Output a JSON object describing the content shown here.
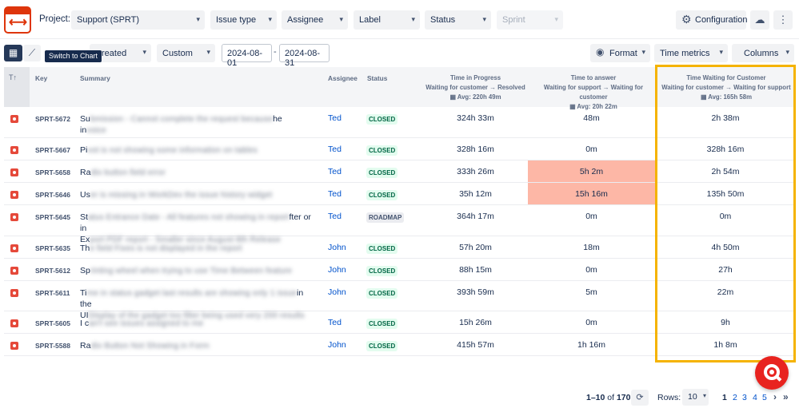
{
  "toolbar": {
    "project_label": "Project:",
    "project_value": "Support (SPRT)",
    "issue_type": "Issue type",
    "assignee": "Assignee",
    "label": "Label",
    "status": "Status",
    "sprint": "Sprint",
    "configuration": "Configuration"
  },
  "toolbar2": {
    "tooltip": "Switch to Chart",
    "date_field": "reated",
    "date_mode": "Custom",
    "date_from": "2024-08-01",
    "date_sep": "-",
    "date_to": "2024-08-31",
    "format": "Format",
    "time_metrics": "Time metrics",
    "columns": "Columns"
  },
  "table": {
    "sort_icon": "T↑",
    "headers": {
      "key": "Key",
      "summary": "Summary",
      "assignee": "Assignee",
      "status": "Status"
    },
    "metrics": [
      {
        "title": "Time in Progress",
        "sub": "Waiting for customer → Resolved",
        "avg": "Avg: 220h 49m"
      },
      {
        "title": "Time to answer",
        "sub": "Waiting for support → Waiting for customer",
        "avg": "Avg: 20h 22m"
      },
      {
        "title": "Time Waiting for Customer",
        "sub": "Waiting for customer → Waiting for support",
        "avg": "Avg: 165h 58m"
      }
    ],
    "rows": [
      {
        "key": "SPRT-5672",
        "summary_prefix": "Su",
        "summary_blur": "bmission - Cannot complete the request because",
        "summary_suffix": "he",
        "summary_line2_prefix": "in",
        "summary_line2_blur": "voice",
        "assignee": "Ted",
        "status": "CLOSED",
        "m1": "324h 33m",
        "m2": "48m",
        "m3": "2h 38m"
      },
      {
        "key": "SPRT-5667",
        "summary_prefix": "Pi",
        "summary_blur": "vot is not showing some information on tables",
        "summary_suffix": "",
        "summary_line2_prefix": "",
        "summary_line2_blur": "",
        "assignee": "Ted",
        "status": "CLOSED",
        "m1": "328h 16m",
        "m2": "0m",
        "m3": "328h 16m"
      },
      {
        "key": "SPRT-5658",
        "summary_prefix": "Ra",
        "summary_blur": "dio button field error",
        "summary_suffix": "",
        "summary_line2_prefix": "",
        "summary_line2_blur": "",
        "assignee": "Ted",
        "status": "CLOSED",
        "m1": "333h 26m",
        "m2": "5h 2m",
        "m3": "2h 54m"
      },
      {
        "key": "SPRT-5646",
        "summary_prefix": "Us",
        "summary_blur": "er is missing in WorkDev the issue history widget",
        "summary_suffix": "",
        "summary_line2_prefix": "",
        "summary_line2_blur": "",
        "assignee": "Ted",
        "status": "CLOSED",
        "m1": "35h 12m",
        "m2": "15h 16m",
        "m3": "135h 50m"
      },
      {
        "key": "SPRT-5645",
        "summary_prefix": "St",
        "summary_blur": "atus Entrance Date - All features not showing in report",
        "summary_suffix": "fter or in",
        "summary_line2_prefix": "Ex",
        "summary_line2_blur": "port PDF report - Smaller since August 8th Release",
        "assignee": "Ted",
        "status": "ROADMAP",
        "m1": "364h 17m",
        "m2": "0m",
        "m3": "0m"
      },
      {
        "key": "SPRT-5635",
        "summary_prefix": "Th",
        "summary_blur": "e field Fixes is not displayed in the report",
        "summary_suffix": "",
        "summary_line2_prefix": "",
        "summary_line2_blur": "",
        "assignee": "John",
        "status": "CLOSED",
        "m1": "57h 20m",
        "m2": "18m",
        "m3": "4h 50m"
      },
      {
        "key": "SPRT-5612",
        "summary_prefix": "Sp",
        "summary_blur": "rinting wheel when trying to use Time Between feature",
        "summary_suffix": "",
        "summary_line2_prefix": "",
        "summary_line2_blur": "",
        "assignee": "John",
        "status": "CLOSED",
        "m1": "88h 15m",
        "m2": "0m",
        "m3": "27h"
      },
      {
        "key": "SPRT-5611",
        "summary_prefix": "Ti",
        "summary_blur": "me in status gadget last results are showing only 1 issue",
        "summary_suffix": "in the",
        "summary_line2_prefix": "UI",
        "summary_line2_blur": "Display of the gadget too filter being used very 200 results",
        "assignee": "John",
        "status": "CLOSED",
        "m1": "393h 59m",
        "m2": "5m",
        "m3": "22m"
      },
      {
        "key": "SPRT-5605",
        "summary_prefix": "I c",
        "summary_blur": "an't see issues assigned to me",
        "summary_suffix": "",
        "summary_line2_prefix": "",
        "summary_line2_blur": "",
        "assignee": "Ted",
        "status": "CLOSED",
        "m1": "15h 26m",
        "m2": "0m",
        "m3": "9h"
      },
      {
        "key": "SPRT-5588",
        "summary_prefix": "Ra",
        "summary_blur": "dio Button Not Showing in Form",
        "summary_suffix": "",
        "summary_line2_prefix": "",
        "summary_line2_blur": "",
        "assignee": "John",
        "status": "CLOSED",
        "m1": "415h 57m",
        "m2": "1h 16m",
        "m3": "1h 8m"
      }
    ]
  },
  "footer": {
    "range": "1–10",
    "of_label": "of",
    "total": "170",
    "rows_label": "Rows:",
    "rows_value": "10",
    "pages": [
      "1",
      "2",
      "3",
      "4",
      "5"
    ],
    "next": "›",
    "last": "»"
  },
  "colors": {
    "highlight_border": "#f5b300",
    "heat_cell": "#fdb7a6",
    "bug_icon": "#e5493a"
  }
}
